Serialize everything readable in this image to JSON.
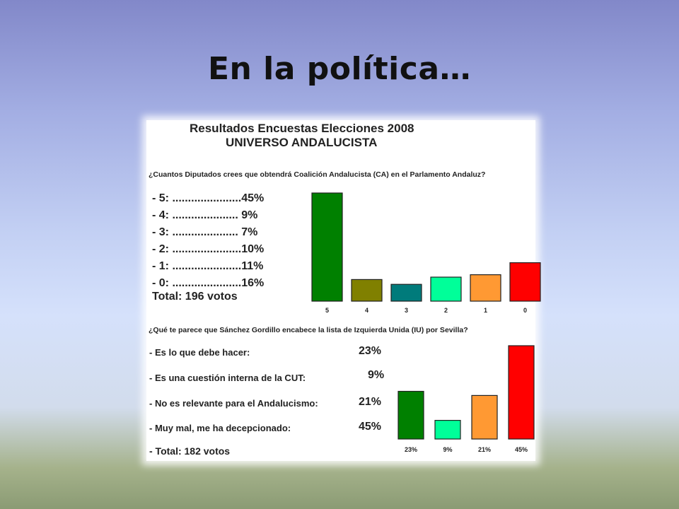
{
  "slide": {
    "title": "En la política…"
  },
  "panel": {
    "header_line1": "Resultados Encuestas Elecciones 2008",
    "header_line2": "UNIVERSO ANDALUCISTA",
    "q1": {
      "question": "¿Cuantos Diputados crees que obtendrá Coalición Andalucista (CA) en el Parlamento Andaluz?",
      "rows": [
        "- 5: ......................45%",
        "- 4: .....................  9%",
        "- 3: .....................  7%",
        "- 2: ......................10%",
        "- 1: ......................11%",
        "- 0: ......................16%"
      ],
      "total": "Total: 196 votos"
    },
    "q2": {
      "question": "¿Qué te parece que Sánchez Gordillo encabece la lista de Izquierda Unida (IU) por Sevilla?",
      "rows": [
        {
          "label": "- Es lo que debe hacer:",
          "pct": "23%"
        },
        {
          "label": "- Es una cuestión interna de la CUT:",
          "pct": "9%"
        },
        {
          "label": "- No es relevante para el Andalucismo:",
          "pct": "21%"
        },
        {
          "label": "- Muy mal, me ha decepcionado:",
          "pct": "45%"
        }
      ],
      "total": "- Total: 182 votos"
    }
  },
  "chart_data": [
    {
      "type": "bar",
      "categories": [
        "5",
        "4",
        "3",
        "2",
        "1",
        "0"
      ],
      "values": [
        45,
        9,
        7,
        10,
        11,
        16
      ],
      "colors": [
        "#008000",
        "#808000",
        "#007b7b",
        "#00ff99",
        "#ff9933",
        "#ff0000"
      ],
      "ylim": [
        0,
        45
      ]
    },
    {
      "type": "bar",
      "categories": [
        "23%",
        "9%",
        "21%",
        "45%"
      ],
      "values": [
        23,
        9,
        21,
        45
      ],
      "colors": [
        "#008000",
        "#00ff99",
        "#ff9933",
        "#ff0000"
      ],
      "ylim": [
        0,
        45
      ]
    }
  ]
}
